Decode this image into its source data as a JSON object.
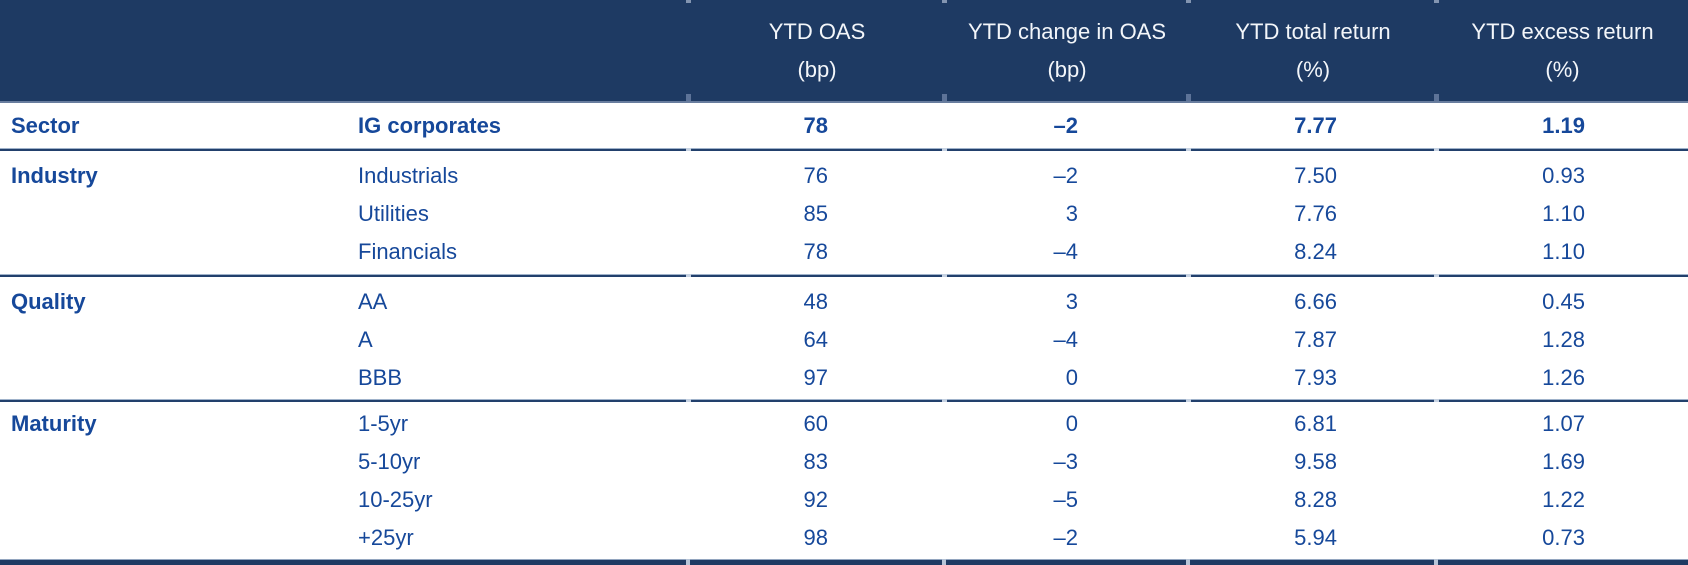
{
  "colors": {
    "header_bg": "#1e3a63",
    "header_text": "#f3f6fa",
    "body_text": "#16489a",
    "divider": "#22406c",
    "divider_break": "#c6d2e2"
  },
  "table": {
    "columns": [
      {
        "key": "category",
        "label": "",
        "unit": ""
      },
      {
        "key": "segment",
        "label": "",
        "unit": ""
      },
      {
        "key": "ytd_oas",
        "label": "YTD OAS",
        "unit": "(bp)"
      },
      {
        "key": "ytd_change_in_oas",
        "label": "YTD change in OAS",
        "unit": "(bp)"
      },
      {
        "key": "ytd_total_return",
        "label": "YTD total return",
        "unit": "(%)"
      },
      {
        "key": "ytd_excess_return",
        "label": "YTD excess return",
        "unit": "(%)"
      }
    ],
    "sections": [
      {
        "category": "Sector",
        "rows": [
          {
            "segment": "IG corporates",
            "values": [
              "78",
              "–2",
              "7.77",
              "1.19"
            ]
          }
        ]
      },
      {
        "category": "Industry",
        "rows": [
          {
            "segment": "Industrials",
            "values": [
              "76",
              "–2",
              "7.50",
              "0.93"
            ]
          },
          {
            "segment": "Utilities",
            "values": [
              "85",
              "3",
              "7.76",
              "1.10"
            ]
          },
          {
            "segment": "Financials",
            "values": [
              "78",
              "–4",
              "8.24",
              "1.10"
            ]
          }
        ]
      },
      {
        "category": "Quality",
        "rows": [
          {
            "segment": "AA",
            "values": [
              "48",
              "3",
              "6.66",
              "0.45"
            ]
          },
          {
            "segment": "A",
            "values": [
              "64",
              "–4",
              "7.87",
              "1.28"
            ]
          },
          {
            "segment": "BBB",
            "values": [
              "97",
              "0",
              "7.93",
              "1.26"
            ]
          }
        ]
      },
      {
        "category": "Maturity",
        "rows": [
          {
            "segment": "1-5yr",
            "values": [
              "60",
              "0",
              "6.81",
              "1.07"
            ]
          },
          {
            "segment": "5-10yr",
            "values": [
              "83",
              "–3",
              "9.58",
              "1.69"
            ]
          },
          {
            "segment": "10-25yr",
            "values": [
              "92",
              "–5",
              "8.28",
              "1.22"
            ]
          },
          {
            "segment": "+25yr",
            "values": [
              "98",
              "–2",
              "5.94",
              "0.73"
            ]
          }
        ]
      }
    ]
  },
  "chart_data": {
    "type": "table",
    "columns": [
      "Category",
      "Segment",
      "YTD OAS (bp)",
      "YTD change in OAS (bp)",
      "YTD total return (%)",
      "YTD excess return (%)"
    ],
    "rows": [
      [
        "Sector",
        "IG corporates",
        78,
        -2,
        7.77,
        1.19
      ],
      [
        "Industry",
        "Industrials",
        76,
        -2,
        7.5,
        0.93
      ],
      [
        "Industry",
        "Utilities",
        85,
        3,
        7.76,
        1.1
      ],
      [
        "Industry",
        "Financials",
        78,
        -4,
        8.24,
        1.1
      ],
      [
        "Quality",
        "AA",
        48,
        3,
        6.66,
        0.45
      ],
      [
        "Quality",
        "A",
        64,
        -4,
        7.87,
        1.28
      ],
      [
        "Quality",
        "BBB",
        97,
        0,
        7.93,
        1.26
      ],
      [
        "Maturity",
        "1-5yr",
        60,
        0,
        6.81,
        1.07
      ],
      [
        "Maturity",
        "5-10yr",
        83,
        -3,
        9.58,
        1.69
      ],
      [
        "Maturity",
        "10-25yr",
        92,
        -5,
        8.28,
        1.22
      ],
      [
        "Maturity",
        "+25yr",
        98,
        -2,
        5.94,
        0.73
      ]
    ]
  }
}
